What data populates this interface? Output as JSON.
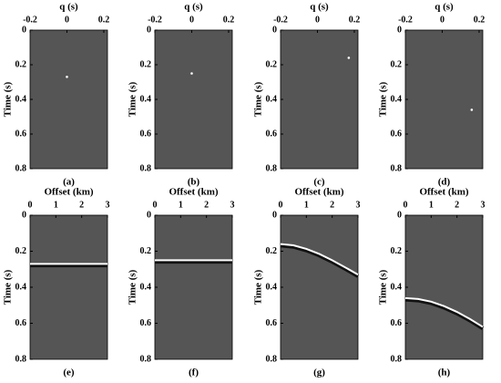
{
  "chart_data": [
    {
      "type": "scatter",
      "caption": "(a)",
      "xlabel": "q (s)",
      "ylabel": "Time (s)",
      "x": [
        0.0
      ],
      "values": [
        0.27
      ],
      "color": "#ffffff",
      "background": "#555555",
      "xlim": [
        -0.2,
        0.22
      ],
      "xticks": [
        -0.2,
        0,
        0.2
      ],
      "ylim": [
        0,
        0.8
      ],
      "yticks": [
        0,
        0.2,
        0.4,
        0.6,
        0.8
      ],
      "yinvert": true
    },
    {
      "type": "scatter",
      "caption": "(b)",
      "xlabel": "q (s)",
      "ylabel": "Time (s)",
      "x": [
        0.0
      ],
      "values": [
        0.25
      ],
      "color": "#ffffff",
      "background": "#555555",
      "xlim": [
        -0.2,
        0.22
      ],
      "xticks": [
        -0.2,
        0,
        0.2
      ],
      "ylim": [
        0,
        0.8
      ],
      "yticks": [
        0,
        0.2,
        0.4,
        0.6,
        0.8
      ],
      "yinvert": true
    },
    {
      "type": "scatter",
      "caption": "(c)",
      "xlabel": "q (s)",
      "ylabel": "Time (s)",
      "x": [
        0.17
      ],
      "values": [
        0.16
      ],
      "color": "#ffffff",
      "background": "#555555",
      "xlim": [
        -0.2,
        0.22
      ],
      "xticks": [
        -0.2,
        0,
        0.2
      ],
      "ylim": [
        0,
        0.8
      ],
      "yticks": [
        0,
        0.2,
        0.4,
        0.6,
        0.8
      ],
      "yinvert": true
    },
    {
      "type": "scatter",
      "caption": "(d)",
      "xlabel": "q (s)",
      "ylabel": "Time (s)",
      "x": [
        0.16
      ],
      "values": [
        0.46
      ],
      "color": "#ffffff",
      "background": "#555555",
      "xlim": [
        -0.2,
        0.22
      ],
      "xticks": [
        -0.2,
        0,
        0.2
      ],
      "ylim": [
        0,
        0.8
      ],
      "yticks": [
        0,
        0.2,
        0.4,
        0.6,
        0.8
      ],
      "yinvert": true
    },
    {
      "type": "line",
      "caption": "(e)",
      "xlabel": "Offset (km)",
      "ylabel": "Time (s)",
      "x": [
        0,
        0.5,
        1,
        1.5,
        2,
        2.5,
        3
      ],
      "values": [
        0.27,
        0.27,
        0.27,
        0.27,
        0.27,
        0.27,
        0.27
      ],
      "color": "#ffffff",
      "background": "#555555",
      "xlim": [
        0,
        3
      ],
      "xticks": [
        0,
        1,
        2,
        3
      ],
      "ylim": [
        0,
        0.8
      ],
      "yticks": [
        0,
        0.2,
        0.4,
        0.6,
        0.8
      ],
      "yinvert": true
    },
    {
      "type": "line",
      "caption": "(f)",
      "xlabel": "Offset (km)",
      "ylabel": "Time (s)",
      "x": [
        0,
        0.5,
        1,
        1.5,
        2,
        2.5,
        3
      ],
      "values": [
        0.25,
        0.25,
        0.25,
        0.25,
        0.25,
        0.25,
        0.25
      ],
      "color": "#ffffff",
      "background": "#555555",
      "xlim": [
        0,
        3
      ],
      "xticks": [
        0,
        1,
        2,
        3
      ],
      "ylim": [
        0,
        0.8
      ],
      "yticks": [
        0,
        0.2,
        0.4,
        0.6,
        0.8
      ],
      "yinvert": true
    },
    {
      "type": "line",
      "caption": "(g)",
      "xlabel": "Offset (km)",
      "ylabel": "Time (s)",
      "x": [
        0,
        0.5,
        1,
        1.5,
        2,
        2.5,
        3
      ],
      "values": [
        0.16,
        0.167,
        0.187,
        0.215,
        0.25,
        0.289,
        0.33
      ],
      "color": "#ffffff",
      "background": "#555555",
      "xlim": [
        0,
        3
      ],
      "xticks": [
        0,
        1,
        2,
        3
      ],
      "ylim": [
        0,
        0.8
      ],
      "yticks": [
        0,
        0.2,
        0.4,
        0.6,
        0.8
      ],
      "yinvert": true
    },
    {
      "type": "line",
      "caption": "(h)",
      "xlabel": "Offset (km)",
      "ylabel": "Time (s)",
      "x": [
        0,
        0.5,
        1,
        1.5,
        2,
        2.5,
        3
      ],
      "values": [
        0.46,
        0.465,
        0.48,
        0.505,
        0.537,
        0.576,
        0.62
      ],
      "color": "#ffffff",
      "background": "#555555",
      "xlim": [
        0,
        3
      ],
      "xticks": [
        0,
        1,
        2,
        3
      ],
      "ylim": [
        0,
        0.8
      ],
      "yticks": [
        0,
        0.2,
        0.4,
        0.6,
        0.8
      ],
      "yinvert": true
    }
  ]
}
